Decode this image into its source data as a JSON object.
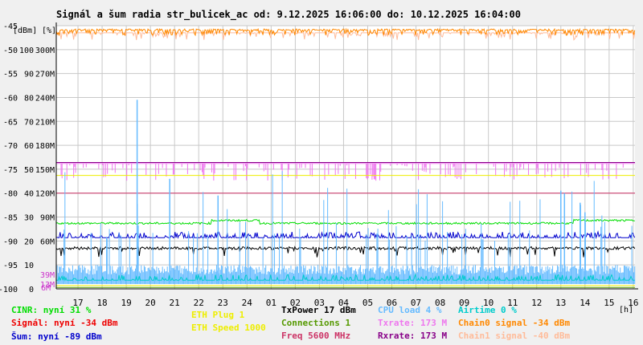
{
  "chart_data": {
    "type": "line",
    "title": "Signál a šum radia str_bulicek_ac od: 9.12.2025 16:06:00 do: 10.12.2025 16:04:00",
    "y_left_label": "[dBm]",
    "y_pct_label": "[%]",
    "x_unit_label": "[h]",
    "x_ticks": [
      "17",
      "18",
      "19",
      "20",
      "21",
      "22",
      "23",
      "24",
      "01",
      "02",
      "03",
      "04",
      "05",
      "06",
      "07",
      "08",
      "09",
      "10",
      "11",
      "12",
      "13",
      "14",
      "15",
      "16"
    ],
    "x_range": [
      16.1,
      40.07
    ],
    "y_range_dbm": [
      -100,
      -45
    ],
    "y_ticks_dbm": [
      "-45",
      "-50",
      "-55",
      "-60",
      "-65",
      "-70",
      "-75",
      "-80",
      "-85",
      "-90",
      "-95",
      "-100"
    ],
    "y_ticks_pct": [
      "100",
      "90",
      "80",
      "70",
      "60",
      "50",
      "40",
      "30",
      "20",
      "10",
      "0"
    ],
    "y_ticks_bw": [
      "300M",
      "270M",
      "240M",
      "210M",
      "180M",
      "150M",
      "120M",
      "90M",
      "60M"
    ],
    "y_ticks_bw_low": [
      "39M",
      "13M",
      "6M"
    ],
    "lines": {
      "signal_dbm": -34,
      "noise_dbm": -89,
      "cinr_pct": 31,
      "tx_power_dbm": 17,
      "eth_speed": 1000,
      "rx_rate_mbps": 173
    },
    "legend": [
      {
        "text": "CINR: nyní 31 %",
        "color": "#00dd00"
      },
      {
        "text": "Signál: nyní -34 dBm",
        "color": "#ee0000"
      },
      {
        "text": "Šum: nyní -89 dBm",
        "color": "#0000cc"
      },
      {
        "text": "ETH Plug 1",
        "color": "#eeee00"
      },
      {
        "text": "ETH Speed 1000",
        "color": "#eeee00"
      },
      {
        "text": "TxPower 17 dBm",
        "color": "#000000"
      },
      {
        "text": "Connections 1",
        "color": "#559900"
      },
      {
        "text": "Freq 5600 MHz",
        "color": "#cc3366"
      },
      {
        "text": "CPU load 4 %",
        "color": "#66bbff"
      },
      {
        "text": "Txrate: 173 M",
        "color": "#ee77ee"
      },
      {
        "text": "Rxrate: 173 M",
        "color": "#880088"
      },
      {
        "text": "Airtime 0 %",
        "color": "#00cccc"
      },
      {
        "text": "Chain0 signal -34 dBm",
        "color": "#ff8800"
      },
      {
        "text": "Chain1 signal -40 dBm",
        "color": "#ffbb99"
      }
    ]
  },
  "colors": {
    "background": "#f0f0f0",
    "plot_bg": "#ffffff",
    "grid": "#c8c8c8",
    "axis": "#000000",
    "bw_label": "#cc33cc"
  }
}
